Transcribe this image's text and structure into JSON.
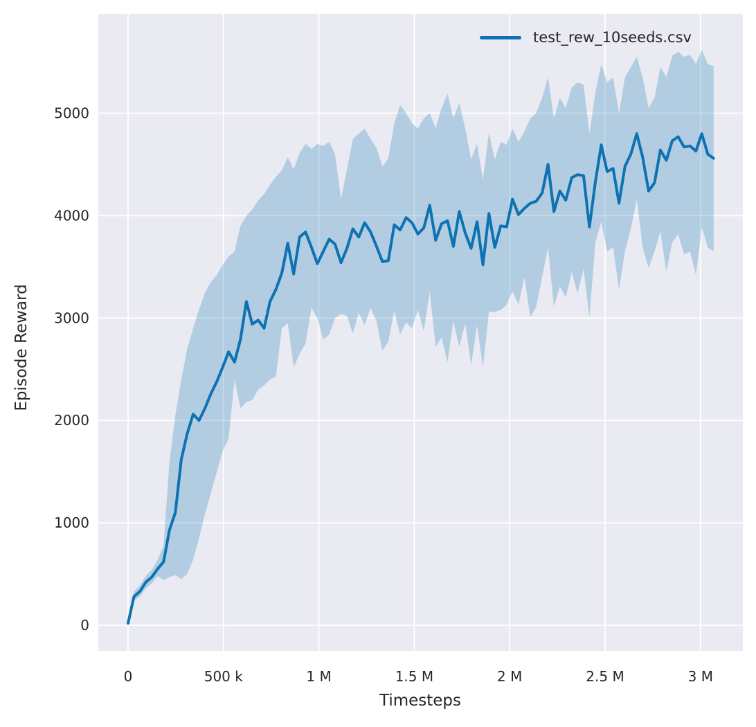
{
  "figure": {
    "xlabel": "Timesteps",
    "ylabel": "Episode Reward",
    "legend": {
      "label": "test_rew_10seeds.csv"
    }
  },
  "colors": {
    "line": "#0c72b2",
    "band_opacity": 0.25,
    "plot_bg": "#eaeaf2",
    "grid": "#ffffff",
    "text": "#262626",
    "figure_bg": "#ffffff"
  },
  "chart_data": {
    "type": "line",
    "title": "",
    "xlabel": "Timesteps",
    "ylabel": "Episode Reward",
    "grid": true,
    "legend_position": "upper right",
    "legend_entries": [
      "test_rew_10seeds.csv"
    ],
    "xlim": [
      -156000,
      3222000
    ],
    "ylim": [
      -250,
      5970
    ],
    "xticks": [
      {
        "value": 0,
        "label": "0"
      },
      {
        "value": 500000,
        "label": "500 k"
      },
      {
        "value": 1000000,
        "label": "1 M"
      },
      {
        "value": 1500000,
        "label": "1.5 M"
      },
      {
        "value": 2000000,
        "label": "2 M"
      },
      {
        "value": 2500000,
        "label": "2.5 M"
      },
      {
        "value": 3000000,
        "label": "3 M"
      }
    ],
    "yticks": [
      {
        "value": 0,
        "label": "0"
      },
      {
        "value": 1000,
        "label": "1000"
      },
      {
        "value": 2000,
        "label": "2000"
      },
      {
        "value": 3000,
        "label": "3000"
      },
      {
        "value": 4000,
        "label": "4000"
      },
      {
        "value": 5000,
        "label": "5000"
      }
    ],
    "series": [
      {
        "name": "test_rew_10seeds.csv",
        "x": [
          0,
          31000,
          62000,
          93000,
          124000,
          155000,
          186000,
          217000,
          248000,
          279000,
          310000,
          341000,
          372000,
          403000,
          434000,
          465000,
          496000,
          527000,
          558000,
          589000,
          620000,
          651000,
          682000,
          713000,
          744000,
          775000,
          806000,
          837000,
          868000,
          899000,
          930000,
          961000,
          992000,
          1023000,
          1054000,
          1085000,
          1116000,
          1147000,
          1178000,
          1209000,
          1240000,
          1271000,
          1302000,
          1333000,
          1364000,
          1395000,
          1426000,
          1457000,
          1488000,
          1519000,
          1550000,
          1581000,
          1612000,
          1643000,
          1674000,
          1705000,
          1736000,
          1767000,
          1798000,
          1829000,
          1860000,
          1891000,
          1922000,
          1953000,
          1984000,
          2015000,
          2046000,
          2077000,
          2108000,
          2139000,
          2170000,
          2201000,
          2232000,
          2263000,
          2294000,
          2325000,
          2356000,
          2387000,
          2418000,
          2449000,
          2480000,
          2511000,
          2542000,
          2573000,
          2604000,
          2635000,
          2666000,
          2697000,
          2728000,
          2759000,
          2790000,
          2821000,
          2852000,
          2883000,
          2914000,
          2945000,
          2976000,
          3007000,
          3038000,
          3069000
        ],
        "mean": [
          20,
          280,
          330,
          420,
          470,
          550,
          620,
          930,
          1100,
          1620,
          1870,
          2060,
          2000,
          2120,
          2260,
          2380,
          2520,
          2670,
          2570,
          2790,
          3160,
          2940,
          2980,
          2900,
          3160,
          3280,
          3440,
          3730,
          3430,
          3790,
          3840,
          3690,
          3530,
          3650,
          3770,
          3720,
          3540,
          3680,
          3870,
          3790,
          3930,
          3840,
          3700,
          3550,
          3560,
          3910,
          3860,
          3980,
          3930,
          3820,
          3880,
          4100,
          3760,
          3920,
          3950,
          3700,
          4040,
          3830,
          3680,
          3940,
          3520,
          4020,
          3690,
          3900,
          3890,
          4160,
          4010,
          4070,
          4120,
          4140,
          4220,
          4500,
          4040,
          4240,
          4150,
          4370,
          4400,
          4390,
          3890,
          4330,
          4690,
          4430,
          4460,
          4120,
          4480,
          4600,
          4800,
          4570,
          4240,
          4320,
          4640,
          4540,
          4730,
          4770,
          4670,
          4680,
          4630,
          4800,
          4600,
          4560
        ],
        "band_upper": [
          40,
          330,
          390,
          480,
          540,
          640,
          780,
          1600,
          2050,
          2400,
          2700,
          2900,
          3080,
          3250,
          3350,
          3420,
          3520,
          3600,
          3650,
          3900,
          4000,
          4060,
          4150,
          4210,
          4300,
          4380,
          4440,
          4570,
          4450,
          4610,
          4700,
          4650,
          4700,
          4680,
          4720,
          4600,
          4160,
          4450,
          4750,
          4800,
          4850,
          4750,
          4660,
          4480,
          4560,
          4900,
          5080,
          5000,
          4900,
          4850,
          4950,
          5000,
          4850,
          5050,
          5190,
          4950,
          5100,
          4850,
          4550,
          4700,
          4350,
          4810,
          4550,
          4720,
          4690,
          4850,
          4720,
          4820,
          4950,
          5000,
          5150,
          5350,
          4950,
          5150,
          5050,
          5250,
          5300,
          5280,
          4800,
          5200,
          5480,
          5300,
          5350,
          5000,
          5350,
          5450,
          5550,
          5350,
          5050,
          5150,
          5450,
          5350,
          5560,
          5600,
          5550,
          5570,
          5480,
          5620,
          5480,
          5460
        ],
        "band_lower": [
          10,
          240,
          280,
          360,
          410,
          480,
          440,
          470,
          490,
          450,
          500,
          640,
          850,
          1090,
          1290,
          1500,
          1700,
          1820,
          2400,
          2120,
          2180,
          2200,
          2300,
          2340,
          2400,
          2430,
          2900,
          2950,
          2520,
          2650,
          2750,
          3100,
          3000,
          2790,
          2840,
          3000,
          3040,
          3020,
          2850,
          3050,
          2930,
          3100,
          2970,
          2680,
          2770,
          3070,
          2840,
          2960,
          2900,
          3080,
          2870,
          3260,
          2720,
          2810,
          2570,
          2970,
          2720,
          2950,
          2540,
          2930,
          2520,
          3060,
          3060,
          3080,
          3130,
          3260,
          3130,
          3400,
          3010,
          3110,
          3400,
          3690,
          3110,
          3310,
          3200,
          3450,
          3240,
          3480,
          3010,
          3740,
          3940,
          3650,
          3690,
          3280,
          3650,
          3870,
          4160,
          3690,
          3490,
          3650,
          3850,
          3450,
          3740,
          3820,
          3620,
          3650,
          3420,
          3890,
          3690,
          3650
        ]
      }
    ]
  }
}
